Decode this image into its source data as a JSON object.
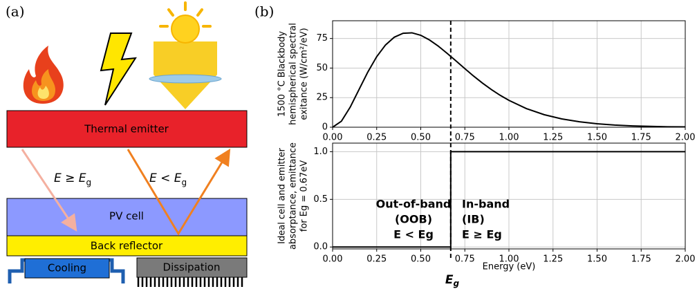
{
  "diagram": {
    "panel_a": "(a)",
    "panel_b": "(b)",
    "emitter": "Thermal emitter",
    "pv_cell": "PV cell",
    "reflector": "Back reflector",
    "cooling": "Cooling",
    "dissipation": "Dissipation",
    "arrow_ib": {
      "main": "E ≥ E",
      "sub": "g"
    },
    "arrow_oob": {
      "main": "E < E",
      "sub": "g"
    }
  },
  "bandgap": {
    "value": 0.67,
    "main": "E",
    "sub": "g"
  },
  "chart_data": [
    {
      "type": "line",
      "ylabel": [
        "1500 °C Blackbody",
        "hemispherical spectral",
        "exitance (W/cm²/eV)"
      ],
      "xlim": [
        0,
        2
      ],
      "ylim": [
        0,
        90
      ],
      "grid": true,
      "xticks": [
        {
          "value": 0,
          "label": "0.00"
        },
        {
          "value": 0.25,
          "label": "0.25"
        },
        {
          "value": 0.5,
          "label": "0.50"
        },
        {
          "value": 0.75,
          "label": "0.75"
        },
        {
          "value": 1,
          "label": "1.00"
        },
        {
          "value": 1.25,
          "label": "1.25"
        },
        {
          "value": 1.5,
          "label": "1.50"
        },
        {
          "value": 1.75,
          "label": "1.75"
        },
        {
          "value": 2,
          "label": "2.00"
        }
      ],
      "yticks": [
        0,
        25,
        50,
        75
      ],
      "series": [
        {
          "color": "#000000",
          "x": [
            0,
            0.05,
            0.1,
            0.15,
            0.2,
            0.25,
            0.3,
            0.35,
            0.4,
            0.45,
            0.5,
            0.55,
            0.6,
            0.65,
            0.7,
            0.75,
            0.8,
            0.85,
            0.9,
            0.95,
            1.0,
            1.1,
            1.2,
            1.3,
            1.4,
            1.5,
            1.6,
            1.7,
            1.8,
            1.9,
            2.0
          ],
          "values": [
            0,
            5.1,
            17.0,
            31.9,
            46.7,
            59.6,
            69.5,
            76.1,
            79.4,
            79.8,
            77.7,
            73.7,
            68.5,
            62.4,
            56.0,
            49.5,
            43.2,
            37.3,
            31.9,
            27.0,
            22.7,
            15.7,
            10.6,
            7.0,
            4.6,
            2.9,
            1.8,
            1.1,
            0.7,
            0.4,
            0.3
          ]
        }
      ]
    },
    {
      "type": "line",
      "ylabel": [
        "Ideal cell and emitter",
        "absorptance, emittance",
        "for Eg = 0.67eV"
      ],
      "xlabel": "Energy (eV)",
      "xlim": [
        0,
        2
      ],
      "ylim": [
        -0.02,
        1.09
      ],
      "grid": true,
      "xticks": [
        {
          "value": 0,
          "label": "0.00"
        },
        {
          "value": 0.25,
          "label": "0.25"
        },
        {
          "value": 0.5,
          "label": "0.50"
        },
        {
          "value": 0.75,
          "label": "0.75"
        },
        {
          "value": 1,
          "label": "1.00"
        },
        {
          "value": 1.25,
          "label": "1.25"
        },
        {
          "value": 1.5,
          "label": "1.50"
        },
        {
          "value": 1.75,
          "label": "1.75"
        },
        {
          "value": 2,
          "label": "2.00"
        }
      ],
      "yticks": [
        {
          "value": 0,
          "label": "0.0"
        },
        0.5,
        {
          "value": 1,
          "label": "1.0"
        }
      ],
      "series": [
        {
          "color": "#000000",
          "x": [
            0,
            0.67,
            0.67,
            2
          ],
          "values": [
            0,
            0,
            1,
            1
          ]
        }
      ],
      "annotations": {
        "oob": [
          "Out-of-band",
          "(OOB)",
          "E < Eg"
        ],
        "ib": [
          "In-band",
          "(IB)",
          "E ≥ Eg"
        ]
      }
    }
  ]
}
